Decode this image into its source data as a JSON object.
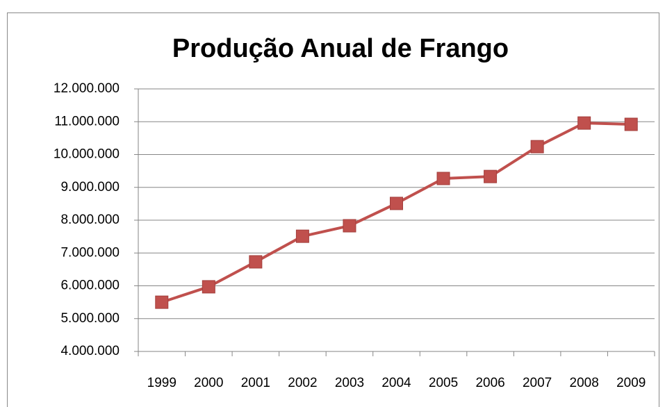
{
  "chart_data": {
    "type": "line",
    "title": "Produção Anual de Frango",
    "categories": [
      "1999",
      "2000",
      "2001",
      "2002",
      "2003",
      "2004",
      "2005",
      "2006",
      "2007",
      "2008",
      "2009"
    ],
    "series": [
      {
        "name": "Produção",
        "color": "#c0504d",
        "values": [
          5500000,
          5970000,
          6730000,
          7510000,
          7830000,
          8510000,
          9270000,
          9330000,
          10240000,
          10960000,
          10920000
        ]
      }
    ],
    "ylim": [
      4000000,
      12000000
    ],
    "yticks": [
      {
        "value": 4000000,
        "label": "4.000.000"
      },
      {
        "value": 5000000,
        "label": "5.000.000"
      },
      {
        "value": 6000000,
        "label": "6.000.000"
      },
      {
        "value": 7000000,
        "label": "7.000.000"
      },
      {
        "value": 8000000,
        "label": "8.000.000"
      },
      {
        "value": 9000000,
        "label": "9.000.000"
      },
      {
        "value": 10000000,
        "label": "10.000.000"
      },
      {
        "value": 11000000,
        "label": "11.000.000"
      },
      {
        "value": 12000000,
        "label": "12.000.000"
      }
    ],
    "grid": true
  }
}
